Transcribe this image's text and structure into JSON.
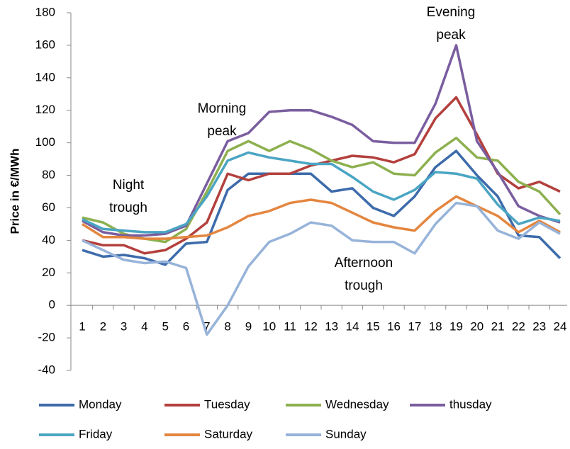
{
  "chart_data": {
    "type": "line",
    "y_label": "Price in €/MWh",
    "categories": [
      "1",
      "2",
      "3",
      "4",
      "5",
      "6",
      "7",
      "8",
      "9",
      "10",
      "11",
      "12",
      "13",
      "14",
      "15",
      "16",
      "17",
      "18",
      "19",
      "20",
      "21",
      "22",
      "23",
      "24"
    ],
    "series": [
      {
        "name": "Monday",
        "color": "#3d6bab",
        "values": [
          34,
          30,
          31,
          29,
          25,
          38,
          39,
          71,
          81,
          81,
          81,
          81,
          70,
          72,
          60,
          55,
          67,
          85,
          95,
          80,
          67,
          43,
          42,
          29
        ]
      },
      {
        "name": "Tuesday",
        "color": "#b3403d",
        "values": [
          40,
          37,
          37,
          32,
          34,
          41,
          51,
          81,
          77,
          81,
          81,
          86,
          89,
          92,
          91,
          88,
          93,
          115,
          128,
          105,
          81,
          72,
          76,
          70
        ]
      },
      {
        "name": "Wednesday",
        "color": "#8db04f",
        "values": [
          54,
          51,
          44,
          41,
          39,
          47,
          70,
          95,
          101,
          95,
          101,
          96,
          89,
          85,
          88,
          81,
          80,
          94,
          103,
          91,
          89,
          76,
          70,
          56
        ]
      },
      {
        "name": "thusday",
        "color": "#7a5d9f",
        "values": [
          52,
          45,
          43,
          43,
          44,
          49,
          75,
          101,
          106,
          119,
          120,
          120,
          116,
          111,
          101,
          100,
          100,
          124,
          160,
          101,
          82,
          61,
          55,
          51
        ]
      },
      {
        "name": "Friday",
        "color": "#4aa5c3",
        "values": [
          53,
          47,
          46,
          45,
          45,
          50,
          67,
          89,
          94,
          91,
          89,
          87,
          87,
          79,
          70,
          65,
          71,
          82,
          81,
          78,
          62,
          50,
          54,
          52
        ]
      },
      {
        "name": "Saturday",
        "color": "#e4863f",
        "values": [
          50,
          42,
          42,
          41,
          41,
          42,
          43,
          48,
          55,
          58,
          63,
          65,
          63,
          57,
          51,
          48,
          46,
          58,
          67,
          61,
          55,
          45,
          52,
          45
        ]
      },
      {
        "name": "Sunday",
        "color": "#97b3d9",
        "values": [
          40,
          34,
          28,
          26,
          27,
          23,
          -18,
          0,
          24,
          39,
          44,
          51,
          49,
          40,
          39,
          39,
          32,
          50,
          63,
          61,
          46,
          41,
          51,
          44
        ]
      }
    ],
    "ylim": [
      -40,
      180
    ],
    "yticks": [
      -40,
      -20,
      0,
      20,
      40,
      60,
      80,
      100,
      120,
      140,
      160,
      180
    ],
    "grid": false,
    "legend": "bottom",
    "annotations": [
      {
        "lines": [
          "Evening",
          "peak"
        ]
      },
      {
        "lines": [
          "Morning",
          "peak"
        ]
      },
      {
        "lines": [
          "Night",
          "trough"
        ]
      },
      {
        "lines": [
          "Afternoon",
          "trough"
        ]
      }
    ]
  }
}
